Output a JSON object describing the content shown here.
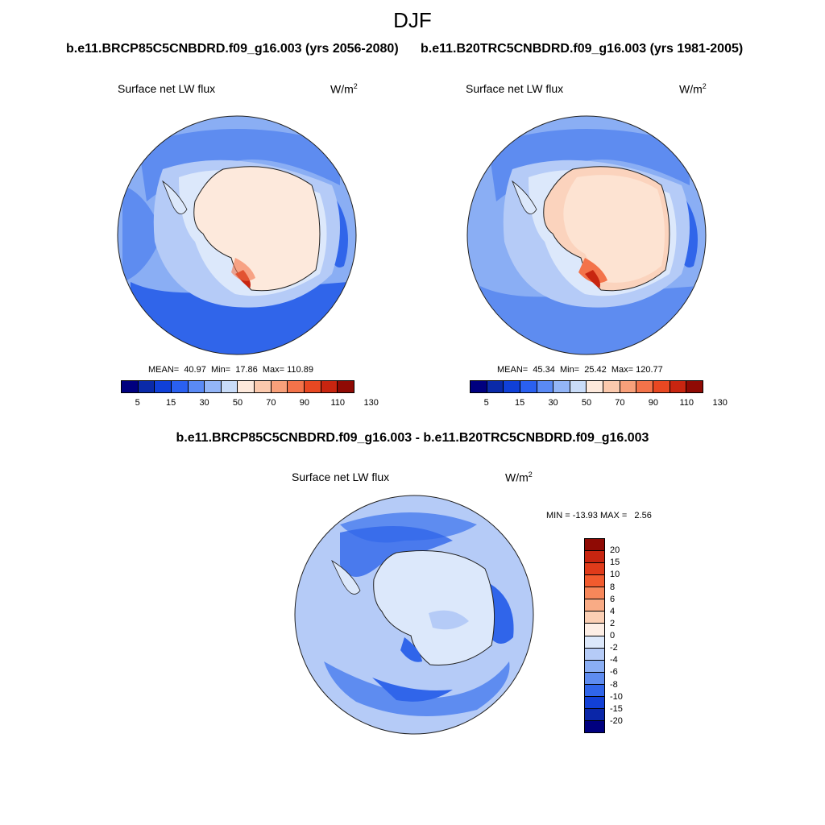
{
  "title": "DJF",
  "panels": {
    "left": {
      "case": "b.e11.BRCP85C5CNBDRD.f09_g16.003 (yrs 2056-2080)",
      "variable": "Surface net LW flux",
      "units_base": "W/m",
      "units_exp": "2",
      "stats": "MEAN=  40.97  Min=  17.86  Max= 110.89"
    },
    "right": {
      "case": "b.e11.B20TRC5CNBDRD.f09_g16.003 (yrs 1981-2005)",
      "variable": "Surface net LW flux",
      "units_base": "W/m",
      "units_exp": "2",
      "stats": "MEAN=  45.34  Min=  25.42  Max= 120.77"
    },
    "diff": {
      "case": "b.e11.BRCP85C5CNBDRD.f09_g16.003 - b.e11.B20TRC5CNBDRD.f09_g16.003",
      "variable": "Surface net LW flux",
      "units_base": "W/m",
      "units_exp": "2",
      "stats": "MIN = -13.93 MAX =   2.56"
    }
  },
  "colorbars": {
    "abs": {
      "labels": [
        "5",
        "15",
        "30",
        "50",
        "70",
        "90",
        "110",
        "130"
      ],
      "colors": [
        "#00007f",
        "#0a2aa8",
        "#1040d8",
        "#2a60f0",
        "#5a8af5",
        "#93b5f7",
        "#c9dcf8",
        "#fde9dc",
        "#fbc9ad",
        "#f8a07a",
        "#f3734a",
        "#e84822",
        "#c82510",
        "#8f0a04"
      ]
    },
    "diff": {
      "labels": [
        "20",
        "15",
        "10",
        "8",
        "6",
        "4",
        "2",
        "0",
        "-2",
        "-4",
        "-6",
        "-8",
        "-10",
        "-15",
        "-20"
      ],
      "colors": [
        "#8f0a04",
        "#c82510",
        "#e03b1a",
        "#f25b2e",
        "#f7875a",
        "#f9ab85",
        "#fbcfb4",
        "#fdeee5",
        "#dce8fb",
        "#b5cbf7",
        "#8aaef4",
        "#5e8cf0",
        "#3065ea",
        "#1240d6",
        "#0a26a8",
        "#00007f"
      ]
    }
  },
  "colors": {
    "ocean_abs": "#8aaef4",
    "ocean_dark": "#3065ea",
    "ocean_light": "#b5cbf7",
    "land_abs": "#fde9dc",
    "land_warm": "#fbd3bd",
    "land_hot": "#f3734a",
    "land_peak": "#c82510",
    "diff_base": "#b5cbf7",
    "diff_dark": "#3065ea",
    "diff_mid": "#5e8cf0",
    "diff_land": "#dce8fb"
  }
}
